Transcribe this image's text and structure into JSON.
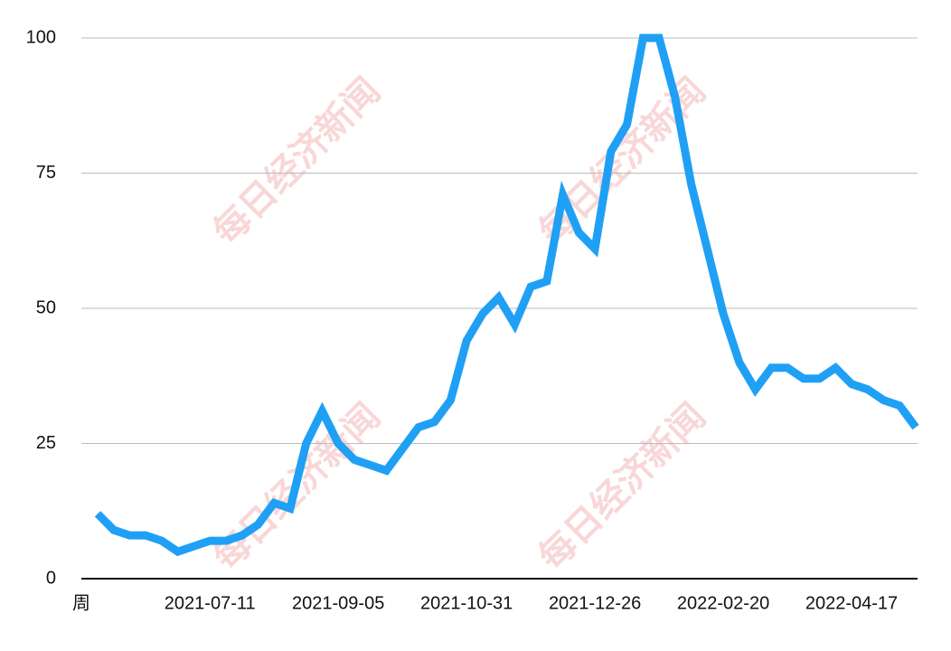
{
  "chart_data": {
    "type": "line",
    "x_label": "周",
    "watermark": "每日经济新闻",
    "categories": [
      null,
      null,
      null,
      null,
      null,
      null,
      null,
      "2021-07-11",
      null,
      null,
      null,
      null,
      null,
      null,
      null,
      "2021-09-05",
      null,
      null,
      null,
      null,
      null,
      null,
      null,
      "2021-10-31",
      null,
      null,
      null,
      null,
      null,
      null,
      null,
      "2021-12-26",
      null,
      null,
      null,
      null,
      null,
      null,
      null,
      "2022-02-20",
      null,
      null,
      null,
      null,
      null,
      null,
      null,
      "2022-04-17",
      null,
      null,
      null,
      null
    ],
    "series": [
      {
        "color": "#1fa0f5",
        "values": [
          12,
          9,
          8,
          8,
          7,
          5,
          6,
          7,
          7,
          8,
          10,
          14,
          13,
          25,
          31,
          25,
          22,
          21,
          20,
          24,
          28,
          29,
          33,
          44,
          49,
          52,
          47,
          54,
          55,
          71,
          64,
          61,
          79,
          84,
          100,
          100,
          89,
          73,
          61,
          49,
          40,
          35,
          39,
          39,
          37,
          37,
          39,
          36,
          35,
          33,
          32,
          28
        ]
      }
    ],
    "ylim": [
      0,
      100
    ],
    "yticks": [
      0,
      25,
      50,
      75,
      100
    ],
    "grid": true
  }
}
